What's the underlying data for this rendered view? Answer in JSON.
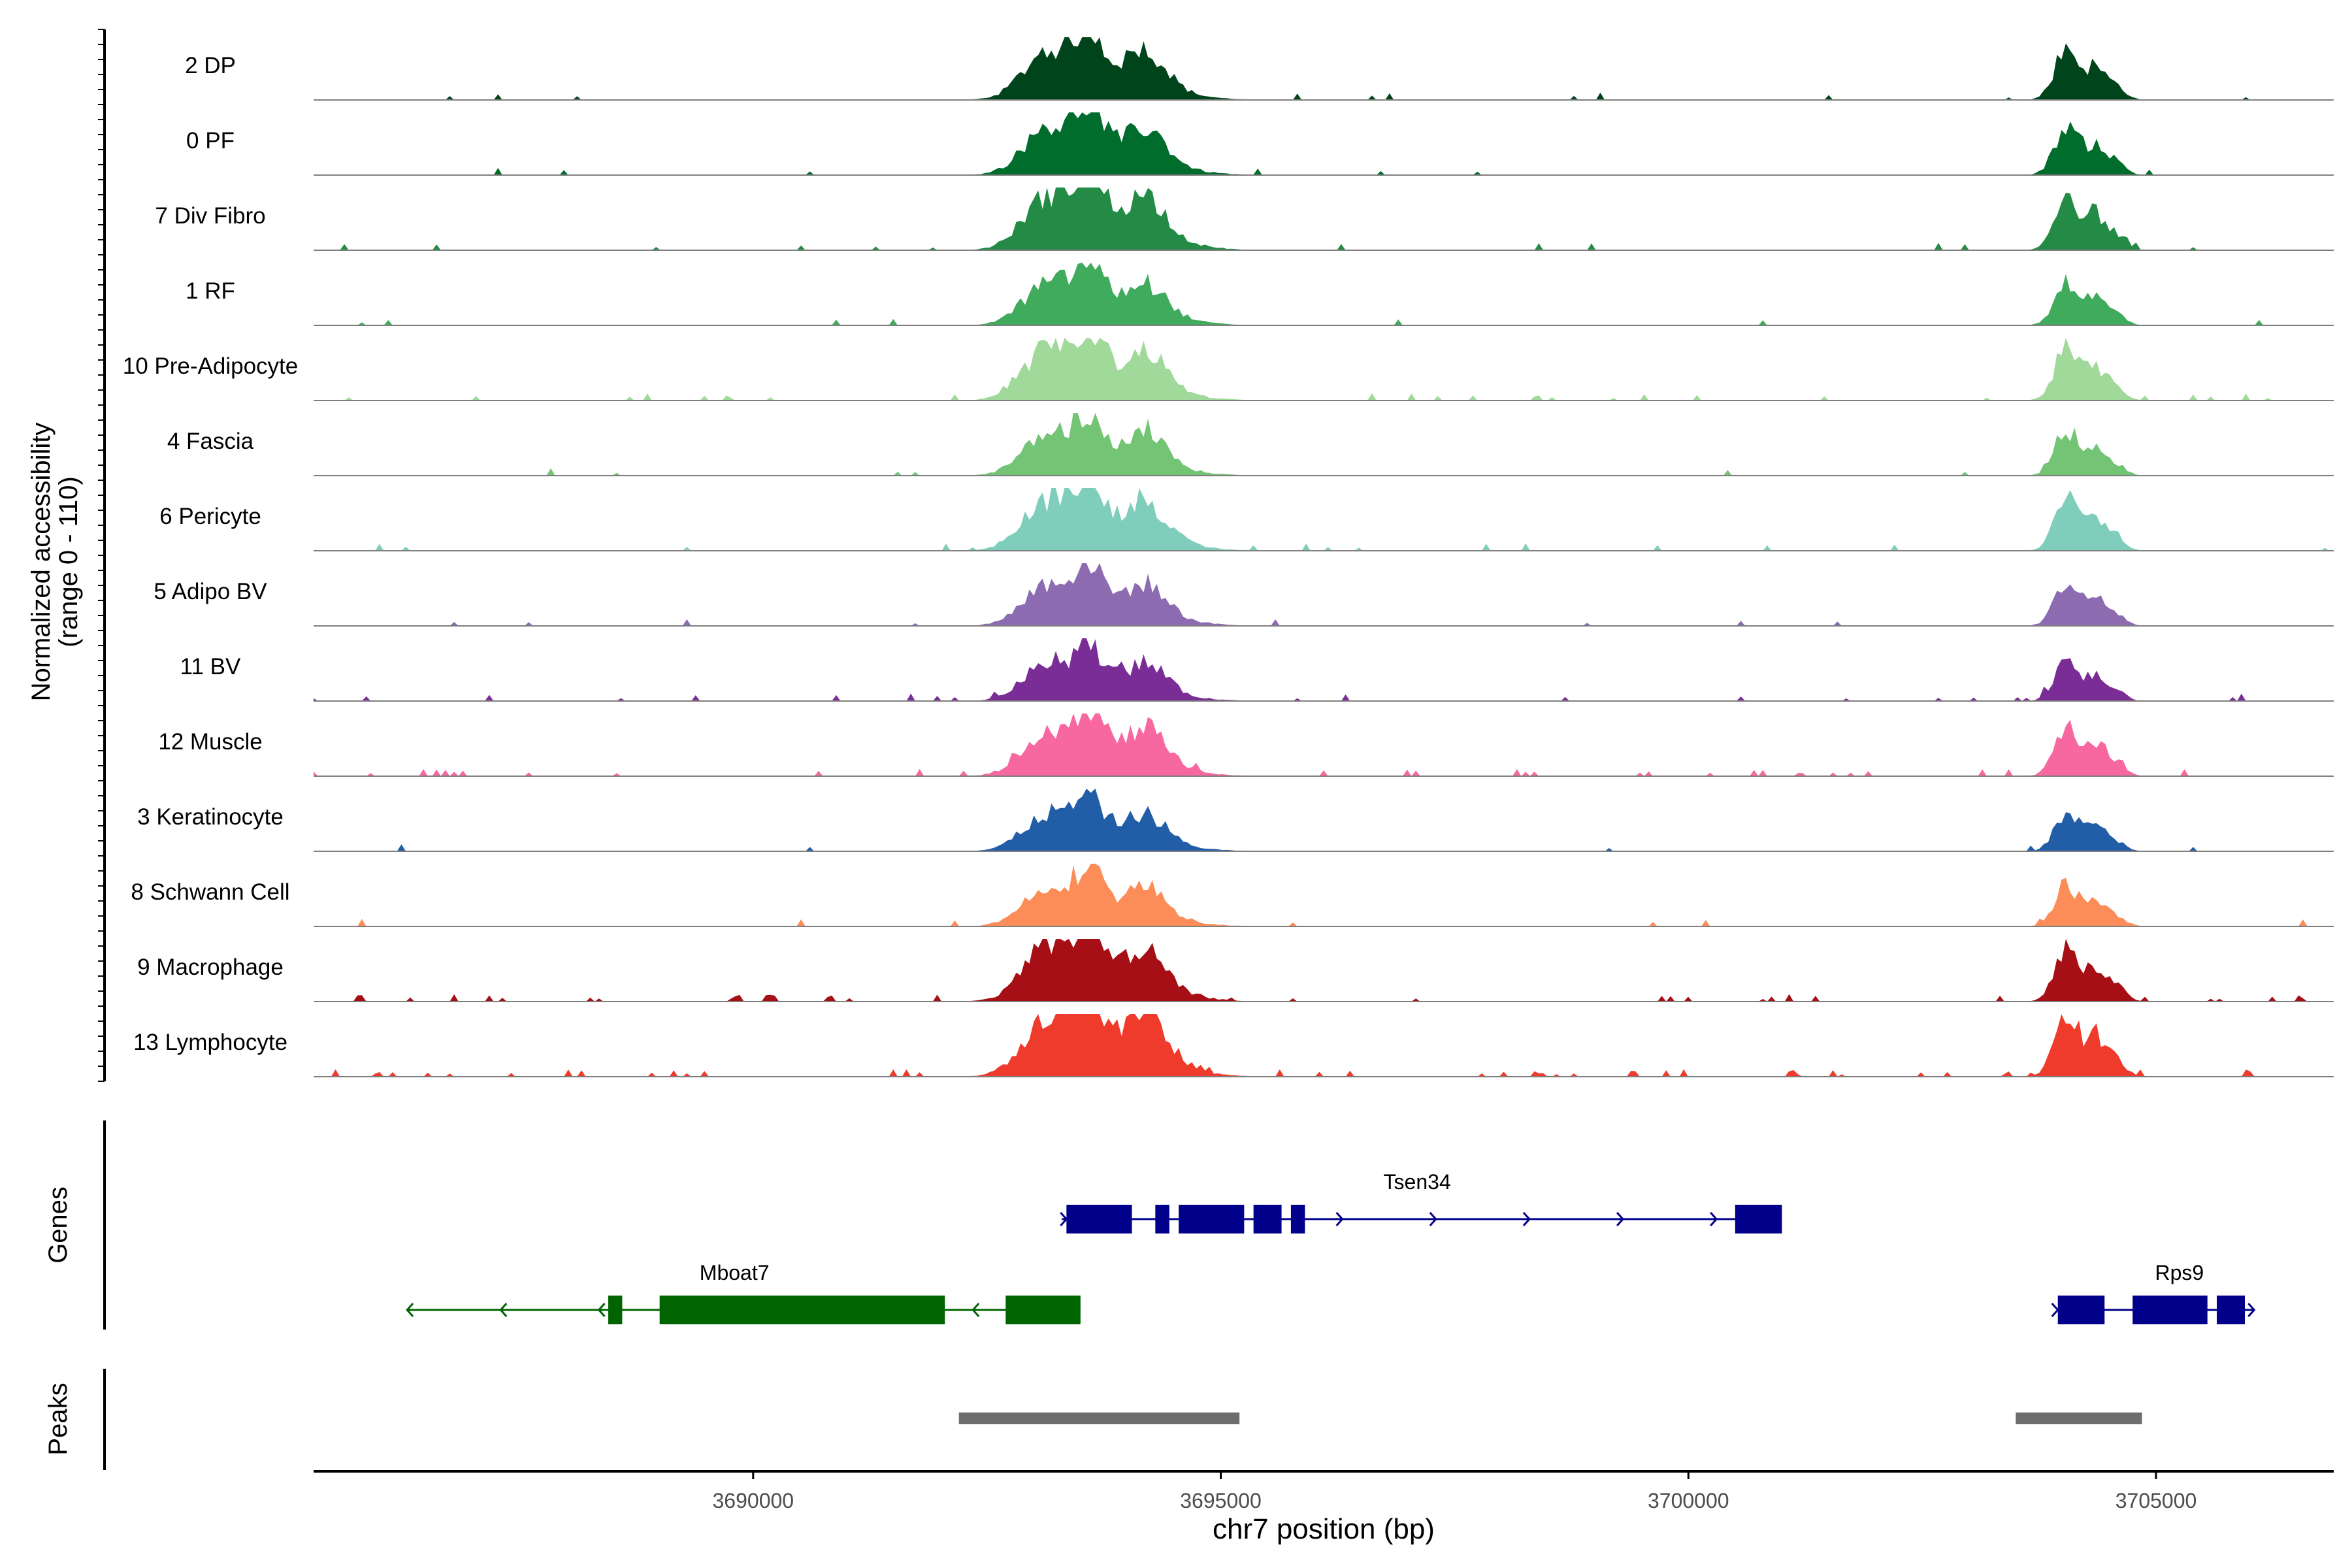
{
  "chart_data": {
    "type": "area",
    "title": "",
    "xlabel": "chr7 position (bp)",
    "ylabel_line1": "Normalized accessibility",
    "ylabel_line2": "(range 0 - 110)",
    "yrange": [
      0,
      110
    ],
    "xlim": [
      3685300,
      3706900
    ],
    "xticks": [
      {
        "value": 3690000,
        "label": "3690000"
      },
      {
        "value": 3695000,
        "label": "3695000"
      },
      {
        "value": 3700000,
        "label": "3700000"
      },
      {
        "value": 3705000,
        "label": "3705000"
      }
    ],
    "peak_templates": [
      {
        "pos": 3693150,
        "sd": 260,
        "h": 0.7
      },
      {
        "pos": 3693600,
        "sd": 150,
        "h": 0.8
      },
      {
        "pos": 3694200,
        "sd": 210,
        "h": 0.55
      },
      {
        "pos": 3693900,
        "sd": 520,
        "h": 0.3
      },
      {
        "pos": 3704050,
        "sd": 130,
        "h": 0.85
      },
      {
        "pos": 3704350,
        "sd": 90,
        "h": 0.45
      },
      {
        "pos": 3704550,
        "sd": 110,
        "h": 0.25
      }
    ],
    "tracks": [
      {
        "label": "2 DP",
        "color": "#00441b",
        "scale": 1.0,
        "noise": 0.02
      },
      {
        "label": "0 PF",
        "color": "#006d2c",
        "scale": 0.95,
        "noise": 0.02
      },
      {
        "label": "7 Div Fibro",
        "color": "#238b45",
        "scale": 1.1,
        "noise": 0.04
      },
      {
        "label": "1 RF",
        "color": "#41ab5d",
        "scale": 0.85,
        "noise": 0.02
      },
      {
        "label": "10 Pre-Adipocyte",
        "color": "#a1d99b",
        "scale": 1.0,
        "noise": 0.05
      },
      {
        "label": "4 Fascia",
        "color": "#74c476",
        "scale": 0.85,
        "noise": 0.02
      },
      {
        "label": "6 Pericyte",
        "color": "#7fcdbb",
        "scale": 1.0,
        "noise": 0.03
      },
      {
        "label": "5 Adipo BV",
        "color": "#8c6bb1",
        "scale": 0.85,
        "noise": 0.02
      },
      {
        "label": "11 BV",
        "color": "#7a2d96",
        "scale": 0.75,
        "noise": 0.06
      },
      {
        "label": "12 Muscle",
        "color": "#f768a1",
        "scale": 0.95,
        "noise": 0.07
      },
      {
        "label": "3 Keratinocyte",
        "color": "#225ea8",
        "scale": 0.75,
        "noise": 0.02
      },
      {
        "label": "8 Schwann Cell",
        "color": "#fc8d59",
        "scale": 0.8,
        "noise": 0.03
      },
      {
        "label": "9 Macrophage",
        "color": "#a50f15",
        "scale": 1.1,
        "noise": 0.08
      },
      {
        "label": "13 Lymphocyte",
        "color": "#ef3b2c",
        "scale": 1.2,
        "noise": 0.1
      }
    ],
    "genes_label": "Genes",
    "peaks_label": "Peaks",
    "genes": [
      {
        "name": "Tsen34",
        "strand": "+",
        "row": 0,
        "color": "#00008b",
        "start": 3693300,
        "end": 3701000,
        "label_pos": 3697100,
        "exons": [
          [
            3693350,
            3694050
          ],
          [
            3694300,
            3694450
          ],
          [
            3694550,
            3695250
          ],
          [
            3695350,
            3695650
          ],
          [
            3695750,
            3695900
          ],
          [
            3700500,
            3701000
          ]
        ],
        "arrows": [
          3693350,
          3695000,
          3696300,
          3697300,
          3698300,
          3699300,
          3700300
        ]
      },
      {
        "name": "Mboat7",
        "strand": "-",
        "row": 1,
        "color": "#006400",
        "start": 3686300,
        "end": 3693500,
        "label_pos": 3689800,
        "exons": [
          [
            3688450,
            3688600
          ],
          [
            3689000,
            3692050
          ],
          [
            3692700,
            3693500
          ]
        ],
        "arrows": [
          3686300,
          3687300,
          3688350,
          3692350
        ]
      },
      {
        "name": "Rps9",
        "strand": "+",
        "row": 1,
        "color": "#00008b",
        "start": 3703950,
        "end": 3706050,
        "label_pos": 3705250,
        "exons": [
          [
            3703950,
            3704450
          ],
          [
            3704750,
            3705550
          ],
          [
            3705650,
            3705950
          ]
        ],
        "arrows": [
          3703950,
          3706050
        ]
      }
    ],
    "peak_regions": [
      {
        "start": 3692200,
        "end": 3695200
      },
      {
        "start": 3703500,
        "end": 3704850
      }
    ]
  }
}
